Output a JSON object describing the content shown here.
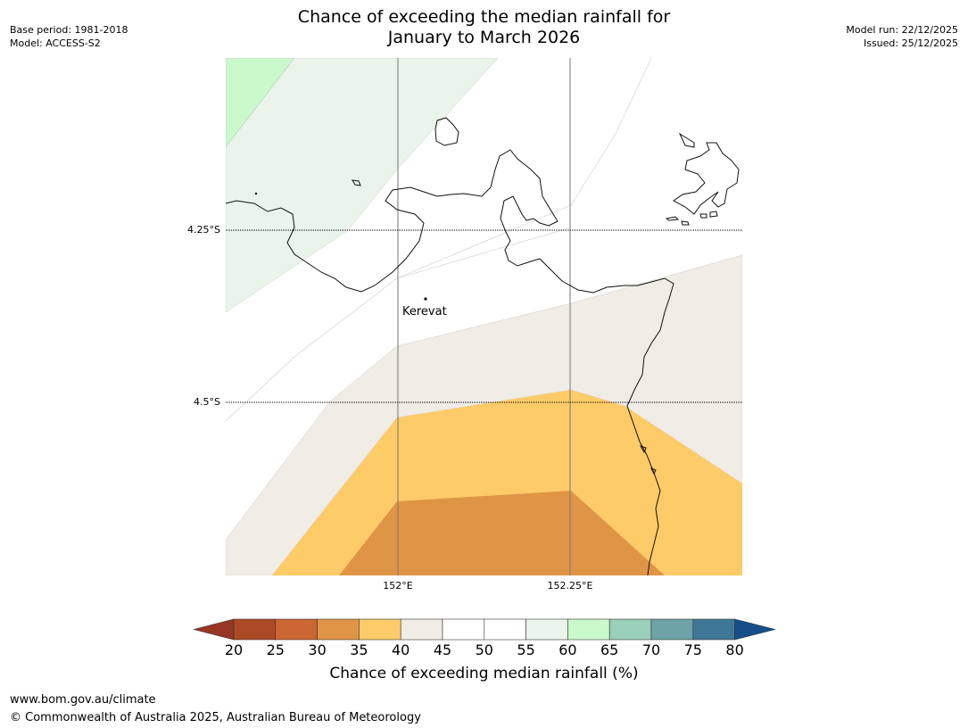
{
  "title_line1": "Chance of exceeding the median rainfall for",
  "title_line2": "January to March 2026",
  "meta_left": {
    "base_period": "Base period: 1981-2018",
    "model": "Model: ACCESS-S2"
  },
  "meta_right": {
    "model_run": "Model run: 22/12/2025",
    "issued": "Issued: 25/12/2025"
  },
  "map": {
    "lat_labels": [
      "4.25°S",
      "4.5°S"
    ],
    "lon_labels": [
      "152°E",
      "152.25°E"
    ],
    "place": "Kerevat"
  },
  "colorbar": {
    "ticks": [
      "20",
      "25",
      "30",
      "35",
      "40",
      "45",
      "50",
      "55",
      "60",
      "65",
      "70",
      "75",
      "80"
    ],
    "colors": [
      "#ad4a26",
      "#cb6633",
      "#e09446",
      "#fecb69",
      "#f0ece6",
      "#ffffff",
      "#ffffff",
      "#eaf4ea",
      "#caf9cb",
      "#9acfb9",
      "#6ea3a8",
      "#3f7896"
    ],
    "under_color": "#973624",
    "over_color": "#154e89",
    "label": "Chance of exceeding median rainfall (%)"
  },
  "footer": {
    "url": "www.bom.gov.au/climate",
    "copyright": "© Commonwealth of Australia 2025, Australian Bureau of Meteorology"
  }
}
